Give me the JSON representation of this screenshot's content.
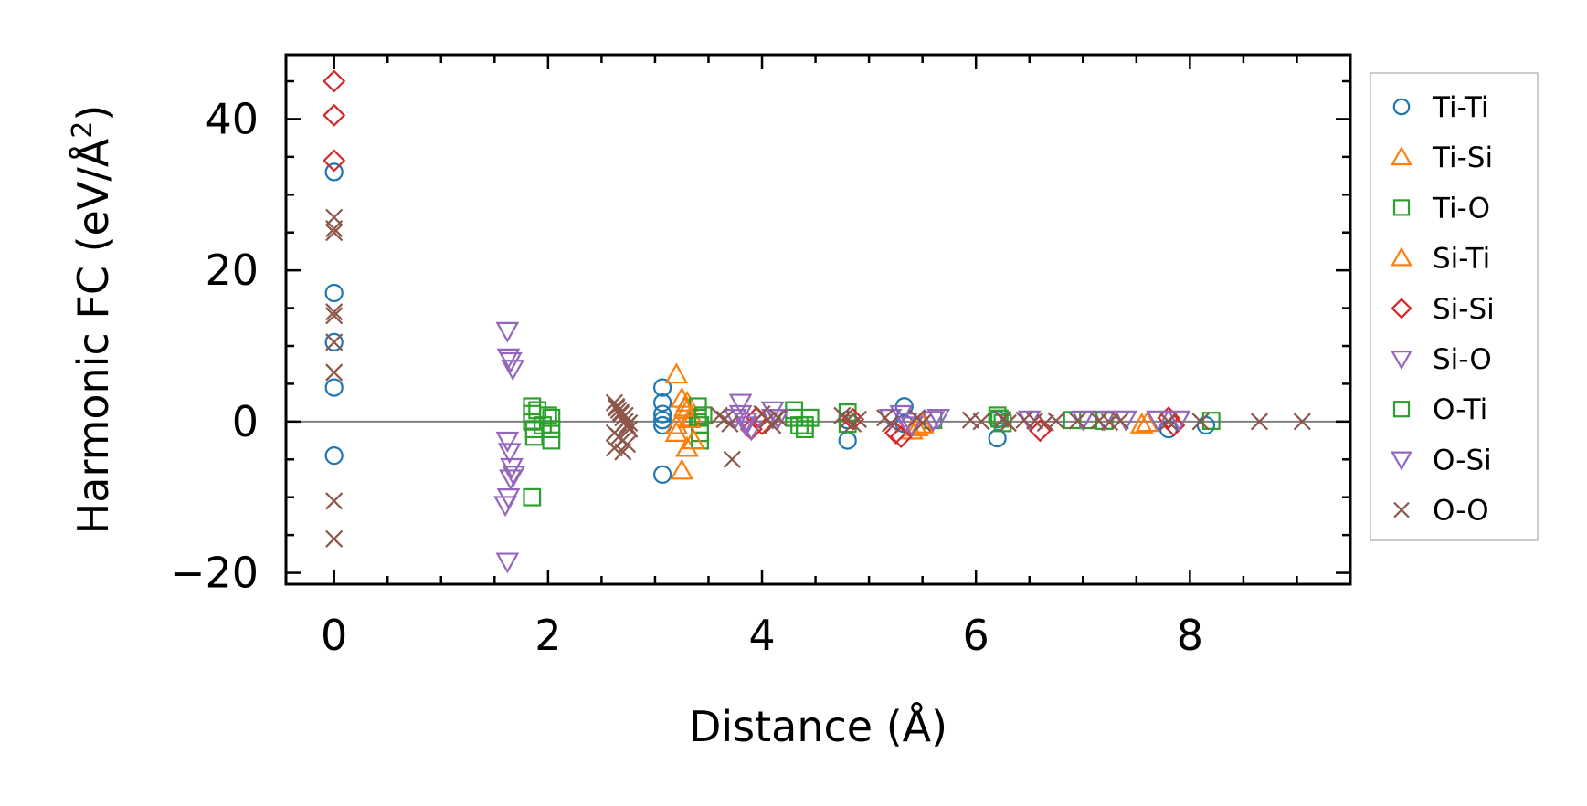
{
  "chart_data": {
    "type": "scatter",
    "xlabel": "Distance (Å)",
    "ylabel_main": "Harmonic FC (eV/Å",
    "ylabel_sup": "2",
    "ylabel_close": ")",
    "xlim": [
      -0.45,
      9.5
    ],
    "ylim": [
      -21.5,
      48.5
    ],
    "xticks": [
      0,
      2,
      4,
      6,
      8
    ],
    "xtick_labels": [
      "0",
      "2",
      "4",
      "6",
      "8"
    ],
    "yticks": [
      -20,
      0,
      20,
      40
    ],
    "ytick_labels": [
      "−20",
      "0",
      "20",
      "40"
    ],
    "zero_line": true,
    "legend_position": "outside-right",
    "series": [
      {
        "name": "Ti-Ti",
        "marker": "circle",
        "color": "#1f77b4",
        "x": [
          0,
          0,
          0,
          0,
          0,
          3.07,
          3.07,
          3.07,
          3.07,
          3.07,
          3.07,
          4.8,
          4.8,
          5.33,
          5.33,
          6.2,
          6.2,
          7.8,
          8.15
        ],
        "y": [
          33,
          17,
          10.5,
          4.5,
          -4.5,
          4.5,
          2.5,
          1.0,
          0.2,
          -0.5,
          -7,
          -2.5,
          0.2,
          2,
          -0.3,
          -2.2,
          0.3,
          -1,
          -0.5
        ]
      },
      {
        "name": "Ti-Si",
        "marker": "triangle-up",
        "color": "#ff7f0e",
        "x": [
          3.2,
          3.25,
          3.3,
          3.3,
          3.35,
          3.2,
          3.2,
          3.25,
          3.3,
          5.4,
          5.45,
          7.6
        ],
        "y": [
          6.2,
          3.0,
          2.5,
          1.5,
          0.5,
          -0.5,
          -1.5,
          -6.5,
          -3.5,
          -1.2,
          -0.8,
          -0.2
        ]
      },
      {
        "name": "Ti-O",
        "marker": "square",
        "color": "#2ca02c",
        "x": [
          1.85,
          1.85,
          1.85,
          1.87,
          1.87,
          1.85,
          2.03,
          2.03,
          2.03,
          3.4,
          3.4,
          3.42,
          3.42,
          3.42,
          4.3,
          4.3,
          4.35,
          4.4,
          4.45,
          4.8,
          4.8,
          5.6,
          6.2,
          6.25,
          6.9,
          7.2,
          8.2
        ],
        "y": [
          2.0,
          1.0,
          0.0,
          -1.0,
          -2.0,
          -10.0,
          0.5,
          -1.0,
          -2.5,
          2.0,
          0.5,
          -0.5,
          -1.5,
          -2.5,
          1.5,
          0.5,
          -0.5,
          -1.0,
          0.5,
          1.2,
          -0.3,
          0.2,
          0.8,
          -0.2,
          0.2,
          0.1,
          0.1
        ]
      },
      {
        "name": "Si-Ti",
        "marker": "triangle-up",
        "color": "#ff7f0e",
        "x": [
          3.28,
          3.32,
          3.36,
          5.5,
          7.55
        ],
        "y": [
          1.8,
          0.3,
          -2.5,
          -0.4,
          -0.4
        ]
      },
      {
        "name": "Si-Si",
        "marker": "diamond",
        "color": "#d62728",
        "x": [
          0,
          0,
          0,
          3.9,
          3.95,
          4.0,
          4.85,
          5.25,
          5.3,
          6.6,
          7.8,
          7.85
        ],
        "y": [
          45,
          40.5,
          34.5,
          -1.0,
          0.5,
          -0.3,
          0.3,
          -1.5,
          -2.0,
          -1.2,
          0.5,
          -0.5
        ]
      },
      {
        "name": "Si-O",
        "marker": "triangle-down",
        "color": "#9467bd",
        "x": [
          1.62,
          1.63,
          1.65,
          1.67,
          1.62,
          1.64,
          1.66,
          1.68,
          1.65,
          1.63,
          1.6,
          1.62,
          3.8,
          3.8,
          3.85,
          3.9,
          4.1,
          4.15,
          5.3,
          5.35,
          5.4,
          5.65,
          7.2,
          7.9
        ],
        "y": [
          12,
          8.5,
          8,
          7,
          -2.5,
          -4,
          -6,
          -7,
          -7.5,
          -10,
          -11,
          -18.5,
          2.5,
          1,
          0,
          -1,
          1.5,
          0.5,
          1,
          0,
          -0.5,
          0.5,
          0.3,
          0.3
        ]
      },
      {
        "name": "O-Ti",
        "marker": "square",
        "color": "#2ca02c",
        "x": [
          1.9,
          1.95,
          2.0,
          3.45,
          4.4,
          6.22,
          7.05
        ],
        "y": [
          1.5,
          -0.5,
          0.8,
          0.8,
          -0.5,
          0.4,
          0.2
        ]
      },
      {
        "name": "O-Si",
        "marker": "triangle-down",
        "color": "#9467bd",
        "x": [
          3.75,
          3.85,
          4.1,
          5.2,
          5.6,
          6.5,
          7.0,
          7.4,
          7.7
        ],
        "y": [
          0.5,
          -0.5,
          0.5,
          0.5,
          0.2,
          0.3,
          0.3,
          0.3,
          0.3
        ]
      },
      {
        "name": "O-O",
        "marker": "x",
        "color": "#8c564b",
        "x": [
          0,
          0,
          0,
          0,
          0,
          0,
          0,
          0,
          0,
          2.62,
          2.64,
          2.66,
          2.68,
          2.7,
          2.72,
          2.74,
          2.76,
          2.62,
          2.66,
          2.7,
          2.74,
          2.64,
          2.68,
          2.72,
          2.76,
          2.62,
          2.7,
          3.6,
          3.65,
          3.7,
          3.72,
          4.0,
          4.05,
          4.1,
          4.15,
          4.75,
          4.8,
          4.85,
          4.9,
          5.15,
          5.2,
          5.45,
          5.5,
          5.95,
          6.05,
          6.25,
          6.3,
          6.45,
          6.55,
          6.65,
          6.75,
          6.95,
          7.15,
          7.25,
          7.35,
          7.8,
          8.1,
          8.65,
          9.05
        ],
        "y": [
          27,
          25,
          14.5,
          14,
          10.5,
          6.5,
          -10.5,
          -15.5,
          25.5,
          2.5,
          2,
          1.5,
          1,
          0.5,
          0,
          -0.5,
          -1,
          -1.5,
          -2,
          -2.5,
          -3,
          1.8,
          1.2,
          0.8,
          -0.2,
          -3.5,
          -4,
          0.8,
          0.3,
          -0.3,
          -5,
          1,
          0.2,
          -0.5,
          0.5,
          0.8,
          0.2,
          -0.3,
          0.3,
          0.5,
          -0.3,
          0.5,
          -0.2,
          0.2,
          0,
          0.3,
          -0.2,
          0.2,
          0.1,
          -0.2,
          0.1,
          0.1,
          0.1,
          -0.1,
          0.1,
          0,
          0,
          0,
          0
        ]
      }
    ]
  }
}
